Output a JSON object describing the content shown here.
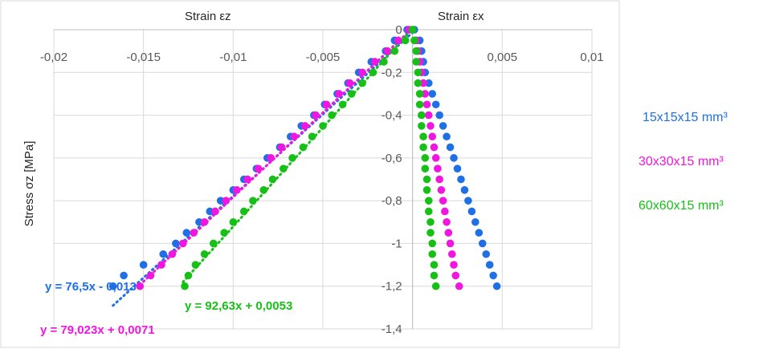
{
  "chart_data": {
    "type": "scatter",
    "x_axis_label_left": "Strain εz",
    "x_axis_label_right": "Strain εx",
    "y_axis_label": "Stress σz [MPa]",
    "xlim": [
      -0.02,
      0.01
    ],
    "ylim": [
      -1.4,
      0
    ],
    "x_ticks": [
      "-0,02",
      "-0,015",
      "-0,01",
      "-0,005",
      "0",
      "0,005",
      "0,01"
    ],
    "x_tick_values": [
      -0.02,
      -0.015,
      -0.01,
      -0.005,
      0,
      0.005,
      0.01
    ],
    "y_ticks": [
      "0",
      "-0,2",
      "-0,4",
      "-0,6",
      "-0,8",
      "-1",
      "-1,2",
      "-1,4"
    ],
    "y_tick_values": [
      0,
      -0.2,
      -0.4,
      -0.6,
      -0.8,
      -1,
      -1.2,
      -1.4
    ],
    "grid": true,
    "legend_position": "right",
    "series": [
      {
        "name": "15x15x15 mm³",
        "color": "#1f6fe5",
        "strain_z": [
          [
            -0.0003,
            0
          ],
          [
            -0.001,
            -0.05
          ],
          [
            -0.0015,
            -0.1
          ],
          [
            -0.0023,
            -0.15
          ],
          [
            -0.003,
            -0.2
          ],
          [
            -0.0036,
            -0.25
          ],
          [
            -0.0042,
            -0.3
          ],
          [
            -0.0049,
            -0.35
          ],
          [
            -0.0055,
            -0.4
          ],
          [
            -0.0062,
            -0.45
          ],
          [
            -0.0068,
            -0.5
          ],
          [
            -0.0074,
            -0.55
          ],
          [
            -0.0081,
            -0.6
          ],
          [
            -0.0087,
            -0.65
          ],
          [
            -0.0094,
            -0.7
          ],
          [
            -0.01,
            -0.75
          ],
          [
            -0.0107,
            -0.8
          ],
          [
            -0.0113,
            -0.85
          ],
          [
            -0.0119,
            -0.9
          ],
          [
            -0.0126,
            -0.95
          ],
          [
            -0.0132,
            -1.0
          ],
          [
            -0.0139,
            -1.05
          ],
          [
            -0.015,
            -1.1
          ],
          [
            -0.0161,
            -1.15
          ],
          [
            -0.0167,
            -1.2
          ]
        ],
        "strain_x": [
          [
            0.0001,
            0
          ],
          [
            0.0004,
            -0.05
          ],
          [
            0.0005,
            -0.1
          ],
          [
            0.0006,
            -0.15
          ],
          [
            0.0007,
            -0.2
          ],
          [
            0.0009,
            -0.25
          ],
          [
            0.0011,
            -0.3
          ],
          [
            0.0013,
            -0.35
          ],
          [
            0.0015,
            -0.4
          ],
          [
            0.0017,
            -0.45
          ],
          [
            0.0019,
            -0.5
          ],
          [
            0.0021,
            -0.55
          ],
          [
            0.0023,
            -0.6
          ],
          [
            0.0025,
            -0.65
          ],
          [
            0.0027,
            -0.7
          ],
          [
            0.0029,
            -0.75
          ],
          [
            0.0031,
            -0.8
          ],
          [
            0.0033,
            -0.85
          ],
          [
            0.0035,
            -0.9
          ],
          [
            0.0037,
            -0.95
          ],
          [
            0.0039,
            -1.0
          ],
          [
            0.0041,
            -1.05
          ],
          [
            0.0043,
            -1.1
          ],
          [
            0.0045,
            -1.15
          ],
          [
            0.0047,
            -1.2
          ]
        ],
        "trendline": {
          "equation": "y = 76,5x - 0,013",
          "slope": 76.5,
          "intercept": -0.013,
          "x_range": [
            -0.0167,
            0
          ]
        }
      },
      {
        "name": "30x30x15 mm³",
        "color": "#f016e0",
        "strain_z": [
          [
            -0.0002,
            0
          ],
          [
            -0.0008,
            -0.05
          ],
          [
            -0.0014,
            -0.1
          ],
          [
            -0.0021,
            -0.15
          ],
          [
            -0.0028,
            -0.2
          ],
          [
            -0.0035,
            -0.25
          ],
          [
            -0.0041,
            -0.3
          ],
          [
            -0.0048,
            -0.35
          ],
          [
            -0.0054,
            -0.4
          ],
          [
            -0.006,
            -0.45
          ],
          [
            -0.0066,
            -0.5
          ],
          [
            -0.0073,
            -0.55
          ],
          [
            -0.0079,
            -0.6
          ],
          [
            -0.0086,
            -0.65
          ],
          [
            -0.0092,
            -0.7
          ],
          [
            -0.0098,
            -0.75
          ],
          [
            -0.0104,
            -0.8
          ],
          [
            -0.011,
            -0.85
          ],
          [
            -0.0116,
            -0.9
          ],
          [
            -0.0122,
            -0.95
          ],
          [
            -0.0128,
            -1.0
          ],
          [
            -0.0134,
            -1.05
          ],
          [
            -0.014,
            -1.1
          ],
          [
            -0.0146,
            -1.15
          ],
          [
            -0.0152,
            -1.2
          ]
        ],
        "strain_x": [
          [
            0.0,
            0
          ],
          [
            0.0002,
            -0.05
          ],
          [
            0.0003,
            -0.1
          ],
          [
            0.0004,
            -0.15
          ],
          [
            0.0005,
            -0.2
          ],
          [
            0.0006,
            -0.25
          ],
          [
            0.0007,
            -0.3
          ],
          [
            0.0008,
            -0.35
          ],
          [
            0.0009,
            -0.4
          ],
          [
            0.001,
            -0.45
          ],
          [
            0.0011,
            -0.5
          ],
          [
            0.0012,
            -0.55
          ],
          [
            0.0013,
            -0.6
          ],
          [
            0.0014,
            -0.65
          ],
          [
            0.0015,
            -0.7
          ],
          [
            0.0016,
            -0.75
          ],
          [
            0.0017,
            -0.8
          ],
          [
            0.0018,
            -0.85
          ],
          [
            0.0019,
            -0.9
          ],
          [
            0.002,
            -0.95
          ],
          [
            0.0021,
            -1.0
          ],
          [
            0.0022,
            -1.05
          ],
          [
            0.0023,
            -1.1
          ],
          [
            0.0024,
            -1.15
          ],
          [
            0.0026,
            -1.2
          ]
        ],
        "trendline": {
          "equation": "y = 79,023x + 0,0071",
          "slope": 79.023,
          "intercept": 0.0071,
          "x_range": [
            -0.0152,
            0
          ]
        }
      },
      {
        "name": "60x60x15 mm³",
        "color": "#16c016",
        "strain_z": [
          [
            0.0,
            0
          ],
          [
            -0.0004,
            -0.05
          ],
          [
            -0.001,
            -0.1
          ],
          [
            -0.0016,
            -0.15
          ],
          [
            -0.0022,
            -0.2
          ],
          [
            -0.0028,
            -0.25
          ],
          [
            -0.0034,
            -0.3
          ],
          [
            -0.0039,
            -0.35
          ],
          [
            -0.0045,
            -0.4
          ],
          [
            -0.005,
            -0.45
          ],
          [
            -0.0056,
            -0.5
          ],
          [
            -0.0061,
            -0.55
          ],
          [
            -0.0067,
            -0.6
          ],
          [
            -0.0072,
            -0.65
          ],
          [
            -0.0078,
            -0.7
          ],
          [
            -0.0083,
            -0.75
          ],
          [
            -0.0089,
            -0.8
          ],
          [
            -0.0094,
            -0.85
          ],
          [
            -0.01,
            -0.9
          ],
          [
            -0.0105,
            -0.95
          ],
          [
            -0.0111,
            -1.0
          ],
          [
            -0.0116,
            -1.05
          ],
          [
            -0.0121,
            -1.1
          ],
          [
            -0.0125,
            -1.15
          ],
          [
            -0.0127,
            -1.2
          ]
        ],
        "strain_x": [
          [
            0.0,
            0
          ],
          [
            0.0001,
            -0.05
          ],
          [
            0.0002,
            -0.1
          ],
          [
            0.0002,
            -0.15
          ],
          [
            0.0003,
            -0.2
          ],
          [
            0.0003,
            -0.25
          ],
          [
            0.0004,
            -0.3
          ],
          [
            0.0004,
            -0.35
          ],
          [
            0.0005,
            -0.4
          ],
          [
            0.0005,
            -0.45
          ],
          [
            0.0006,
            -0.5
          ],
          [
            0.0006,
            -0.55
          ],
          [
            0.0007,
            -0.6
          ],
          [
            0.0007,
            -0.65
          ],
          [
            0.0008,
            -0.7
          ],
          [
            0.0008,
            -0.75
          ],
          [
            0.0009,
            -0.8
          ],
          [
            0.0009,
            -0.85
          ],
          [
            0.001,
            -0.9
          ],
          [
            0.001,
            -0.95
          ],
          [
            0.0011,
            -1.0
          ],
          [
            0.0011,
            -1.05
          ],
          [
            0.0012,
            -1.1
          ],
          [
            0.0012,
            -1.15
          ],
          [
            0.0013,
            -1.2
          ]
        ],
        "trendline": {
          "equation": "y = 92,63x + 0,0053",
          "slope": 92.63,
          "intercept": 0.0053,
          "x_range": [
            -0.0128,
            0
          ]
        }
      }
    ]
  }
}
